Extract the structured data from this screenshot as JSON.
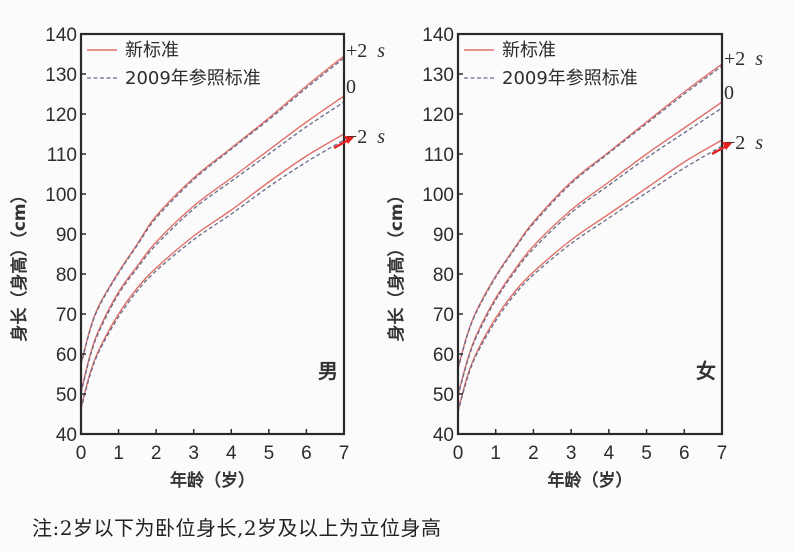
{
  "chart_data": [
    {
      "type": "line",
      "panel": "男",
      "xlabel": "年龄（岁）",
      "ylabel": "身长（身高）（cm）",
      "xlim": [
        0,
        7
      ],
      "ylim": [
        40,
        140
      ],
      "xticks": [
        0,
        1,
        2,
        3,
        4,
        5,
        6,
        7
      ],
      "yticks": [
        40,
        50,
        60,
        70,
        80,
        90,
        100,
        110,
        120,
        130,
        140
      ],
      "legend": [
        "新标准",
        "2009年参照标准"
      ],
      "legend_position": "upper-left",
      "x": [
        0,
        0.25,
        0.5,
        1,
        1.5,
        2,
        3,
        4,
        5,
        6,
        7
      ],
      "series": [
        {
          "name": "新标准 +2 s",
          "style": "solid",
          "values": [
            57.5,
            66.5,
            72.5,
            80.5,
            87.5,
            94.5,
            104,
            111.5,
            119,
            127,
            134.5
          ]
        },
        {
          "name": "2009年参照标准 +2 s",
          "style": "dashed",
          "values": [
            57.2,
            66.2,
            72.2,
            80.2,
            87.2,
            94,
            103.6,
            111.2,
            118.6,
            126.5,
            134
          ]
        },
        {
          "name": "新标准 0",
          "style": "solid",
          "values": [
            50.5,
            60,
            66.5,
            75.5,
            82,
            88,
            97,
            104,
            111,
            118,
            124.5
          ]
        },
        {
          "name": "2009年参照标准 0",
          "style": "dashed",
          "values": [
            50.2,
            59.6,
            66,
            75,
            81.5,
            87.3,
            96.3,
            103.2,
            110,
            116.8,
            123
          ]
        },
        {
          "name": "新标准 −2 s",
          "style": "solid",
          "values": [
            46.5,
            55.5,
            61.5,
            70,
            76.5,
            81.5,
            89.5,
            96,
            103,
            109.5,
            115
          ]
        },
        {
          "name": "2009年参照标准 −2 s",
          "style": "dashed",
          "values": [
            46.2,
            55,
            61,
            69.3,
            75.8,
            80.8,
            88.6,
            95,
            101.8,
            108,
            113.5
          ]
        }
      ],
      "annotations": [
        "+2 s",
        "0",
        "−2 s"
      ],
      "arrow_target": "−2 s"
    },
    {
      "type": "line",
      "panel": "女",
      "xlabel": "年龄（岁）",
      "ylabel": "身长（身高）（cm）",
      "xlim": [
        0,
        7
      ],
      "ylim": [
        40,
        140
      ],
      "xticks": [
        0,
        1,
        2,
        3,
        4,
        5,
        6,
        7
      ],
      "yticks": [
        40,
        50,
        60,
        70,
        80,
        90,
        100,
        110,
        120,
        130,
        140
      ],
      "legend": [
        "新标准",
        "2009年参照标准"
      ],
      "legend_position": "upper-left",
      "x": [
        0,
        0.25,
        0.5,
        1,
        1.5,
        2,
        3,
        4,
        5,
        6,
        7
      ],
      "series": [
        {
          "name": "新标准 +2 s",
          "style": "solid",
          "values": [
            56.5,
            65,
            71,
            79.5,
            86.5,
            93,
            103,
            110.5,
            118,
            125.5,
            132.5
          ]
        },
        {
          "name": "2009年参照标准 +2 s",
          "style": "dashed",
          "values": [
            56.2,
            64.7,
            70.7,
            79.2,
            86.2,
            92.6,
            102.6,
            110.2,
            117.6,
            125,
            132
          ]
        },
        {
          "name": "新标准 0",
          "style": "solid",
          "values": [
            49.8,
            58.5,
            65,
            74,
            81,
            87,
            96,
            103,
            110,
            116.5,
            123
          ]
        },
        {
          "name": "2009年参照标准 0",
          "style": "dashed",
          "values": [
            49.5,
            58.1,
            64.5,
            73.5,
            80.5,
            86.3,
            95.3,
            102.2,
            109,
            115.3,
            121.5
          ]
        },
        {
          "name": "新标准 −2 s",
          "style": "solid",
          "values": [
            45.8,
            54.5,
            60.5,
            69,
            75.5,
            80.5,
            88.5,
            95,
            101.5,
            108,
            113.5
          ]
        },
        {
          "name": "2009年参照标准 −2 s",
          "style": "dashed",
          "values": [
            45.5,
            54,
            60,
            68.3,
            74.8,
            79.8,
            87.6,
            94,
            100.3,
            106.5,
            112
          ]
        }
      ],
      "annotations": [
        "+2 s",
        "0",
        "−2 s"
      ],
      "arrow_target": "−2 s"
    }
  ],
  "colors": {
    "new_standard": "#e0706a",
    "ref_2009": "#6a6a8a",
    "axis": "#2a2a2a",
    "arrow": "#e62020"
  },
  "note": "注:2岁以下为卧位身长,2岁及以上为立位身高"
}
